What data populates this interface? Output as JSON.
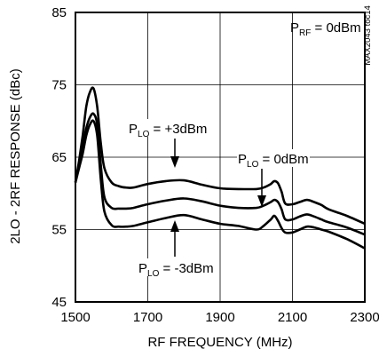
{
  "chart_data": {
    "type": "line",
    "title": "",
    "xlabel": "RF FREQUENCY (MHz)",
    "ylabel": "2LO - 2RF RESPONSE (dBc)",
    "xlim": [
      1500,
      2300
    ],
    "ylim": [
      45,
      85
    ],
    "x_ticks": [
      "1500",
      "1700",
      "1900",
      "2100",
      "2300"
    ],
    "y_ticks": [
      "45",
      "55",
      "65",
      "75",
      "85"
    ],
    "grid": true,
    "legend": "none",
    "side_label": "MAX2043 toc14",
    "annotations": {
      "prf": {
        "main": "P",
        "sub": "RF",
        "rest": " = 0dBm"
      },
      "plo_plus3": {
        "main": "P",
        "sub": "LO",
        "rest": " = +3dBm"
      },
      "plo_0": {
        "main": "P",
        "sub": "LO",
        "rest": " = 0dBm"
      },
      "plo_minus3": {
        "main": "P",
        "sub": "LO",
        "rest": " = -3dBm"
      }
    },
    "series": [
      {
        "name": "PLO = +3dBm",
        "x": [
          1500,
          1510,
          1520,
          1530,
          1540,
          1550,
          1560,
          1570,
          1580,
          1600,
          1620,
          1640,
          1660,
          1700,
          1750,
          1800,
          1850,
          1900,
          1950,
          2000,
          2020,
          2040,
          2050,
          2060,
          2070,
          2080,
          2100,
          2120,
          2140,
          2160,
          2180,
          2200,
          2250,
          2300
        ],
        "y": [
          61.5,
          64.5,
          68,
          72,
          74,
          74.5,
          72,
          67,
          63.5,
          61.5,
          61,
          60.8,
          60.8,
          61.3,
          61.7,
          61.8,
          61.2,
          60.7,
          60.6,
          60.6,
          60.8,
          61.3,
          61.7,
          61.4,
          60.2,
          58.6,
          58.5,
          58.8,
          59.1,
          58.8,
          58.4,
          57.8,
          56.9,
          55.8
        ]
      },
      {
        "name": "PLO = 0dBm",
        "x": [
          1500,
          1510,
          1520,
          1530,
          1540,
          1550,
          1560,
          1570,
          1580,
          1600,
          1620,
          1640,
          1660,
          1700,
          1750,
          1800,
          1850,
          1900,
          1950,
          2000,
          2020,
          2040,
          2050,
          2060,
          2070,
          2080,
          2100,
          2120,
          2140,
          2160,
          2180,
          2200,
          2250,
          2300
        ],
        "y": [
          61.5,
          64,
          66.5,
          69,
          70.5,
          71,
          69.5,
          64,
          59.5,
          58,
          57.9,
          57.9,
          58,
          58.5,
          59,
          59.3,
          58.9,
          58.3,
          58,
          58,
          58.3,
          58.8,
          59.1,
          58.8,
          57.8,
          56.4,
          56.4,
          56.8,
          57.1,
          56.8,
          56.4,
          56,
          55.3,
          54.3
        ]
      },
      {
        "name": "PLO = -3dBm",
        "x": [
          1500,
          1510,
          1520,
          1530,
          1540,
          1550,
          1560,
          1570,
          1580,
          1600,
          1620,
          1640,
          1660,
          1700,
          1750,
          1800,
          1850,
          1900,
          1950,
          2000,
          2020,
          2040,
          2050,
          2060,
          2070,
          2080,
          2100,
          2120,
          2140,
          2160,
          2180,
          2200,
          2250,
          2300
        ],
        "y": [
          61.5,
          63.5,
          65.5,
          68,
          69.5,
          70,
          68,
          62,
          57.5,
          55.6,
          55.4,
          55.4,
          55.5,
          56,
          56.6,
          57,
          56.4,
          55.8,
          55.5,
          55,
          55.5,
          56.4,
          56.9,
          56.2,
          55.2,
          54.6,
          54.6,
          55,
          55.4,
          55.3,
          55,
          54.7,
          53.7,
          52.4
        ]
      }
    ]
  }
}
